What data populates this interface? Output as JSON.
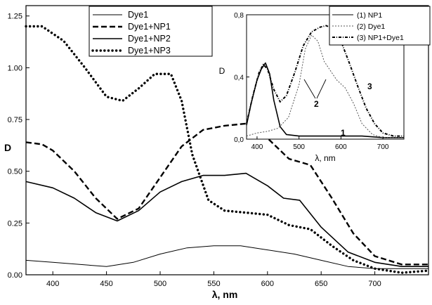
{
  "chart_data": [
    {
      "type": "line",
      "title": "",
      "xlabel": "λ, nm",
      "ylabel": "D",
      "xlim": [
        375,
        750
      ],
      "ylim": [
        0,
        1.3
      ],
      "xticks": [
        "400",
        "450",
        "500",
        "550",
        "600",
        "650",
        "700"
      ],
      "yticks": [
        "0.00",
        "0.25",
        "0.50",
        "0.75",
        "1.00",
        "1.25"
      ],
      "legend_position": "top-left",
      "grid": false,
      "series": [
        {
          "name": "Dye1",
          "style": "solid-thin",
          "x": [
            375,
            400,
            425,
            450,
            475,
            500,
            525,
            550,
            575,
            600,
            625,
            650,
            675,
            700,
            725,
            750
          ],
          "y": [
            0.07,
            0.06,
            0.05,
            0.04,
            0.06,
            0.1,
            0.13,
            0.14,
            0.14,
            0.12,
            0.1,
            0.07,
            0.04,
            0.03,
            0.03,
            0.03
          ]
        },
        {
          "name": "Dye1+NP1",
          "style": "dashed",
          "x": [
            375,
            390,
            400,
            420,
            440,
            460,
            480,
            500,
            520,
            540,
            560,
            580,
            600,
            620,
            640,
            660,
            680,
            700,
            725,
            750
          ],
          "y": [
            0.64,
            0.63,
            0.6,
            0.5,
            0.37,
            0.27,
            0.32,
            0.47,
            0.62,
            0.7,
            0.72,
            0.73,
            0.66,
            0.56,
            0.53,
            0.37,
            0.2,
            0.09,
            0.05,
            0.05
          ]
        },
        {
          "name": "Dye1+NP2",
          "style": "solid",
          "x": [
            375,
            400,
            420,
            440,
            460,
            480,
            500,
            520,
            540,
            560,
            580,
            600,
            615,
            630,
            650,
            675,
            700,
            725,
            750
          ],
          "y": [
            0.45,
            0.42,
            0.37,
            0.3,
            0.26,
            0.31,
            0.4,
            0.45,
            0.48,
            0.48,
            0.49,
            0.43,
            0.37,
            0.36,
            0.23,
            0.11,
            0.06,
            0.04,
            0.04
          ]
        },
        {
          "name": "Dye1+NP3",
          "style": "dotted",
          "x": [
            375,
            390,
            410,
            430,
            450,
            465,
            480,
            495,
            510,
            520,
            530,
            545,
            560,
            580,
            600,
            620,
            640,
            660,
            680,
            700,
            725,
            750
          ],
          "y": [
            1.2,
            1.2,
            1.13,
            1.0,
            0.86,
            0.84,
            0.9,
            0.97,
            0.97,
            0.84,
            0.58,
            0.36,
            0.31,
            0.3,
            0.29,
            0.24,
            0.22,
            0.14,
            0.07,
            0.03,
            0.01,
            0.02
          ]
        }
      ]
    },
    {
      "type": "line",
      "title": "",
      "xlabel": "λ, nm",
      "ylabel": "D",
      "xlim": [
        375,
        750
      ],
      "ylim": [
        0,
        0.8
      ],
      "xticks": [
        "400",
        "500",
        "600",
        "700"
      ],
      "yticks": [
        "0,0",
        "0,4",
        "0,8"
      ],
      "legend_position": "top-right",
      "grid": false,
      "annotations": [
        "1",
        "2",
        "3"
      ],
      "series": [
        {
          "name": "(1) NP1",
          "style": "solid",
          "x": [
            375,
            385,
            400,
            410,
            420,
            430,
            440,
            455,
            470,
            500,
            550,
            600,
            650,
            700,
            750
          ],
          "y": [
            0.09,
            0.22,
            0.38,
            0.45,
            0.49,
            0.42,
            0.25,
            0.08,
            0.03,
            0.02,
            0.02,
            0.02,
            0.02,
            0.01,
            0.01
          ]
        },
        {
          "name": "(2) Dye1",
          "style": "dashed-light",
          "x": [
            375,
            400,
            425,
            450,
            475,
            500,
            515,
            530,
            545,
            560,
            575,
            590,
            610,
            630,
            650,
            675,
            700,
            750
          ],
          "y": [
            0.02,
            0.04,
            0.05,
            0.07,
            0.14,
            0.35,
            0.58,
            0.67,
            0.63,
            0.5,
            0.44,
            0.38,
            0.33,
            0.23,
            0.1,
            0.03,
            0.01,
            0.01
          ]
        },
        {
          "name": "(3) NP1+Dye1",
          "style": "dashdot",
          "x": [
            375,
            390,
            405,
            415,
            425,
            440,
            455,
            470,
            490,
            510,
            530,
            550,
            565,
            580,
            600,
            620,
            640,
            660,
            680,
            700,
            725,
            750
          ],
          "y": [
            0.1,
            0.28,
            0.43,
            0.48,
            0.45,
            0.32,
            0.24,
            0.28,
            0.43,
            0.6,
            0.69,
            0.72,
            0.73,
            0.71,
            0.63,
            0.49,
            0.34,
            0.2,
            0.1,
            0.04,
            0.02,
            0.02
          ]
        }
      ]
    }
  ]
}
